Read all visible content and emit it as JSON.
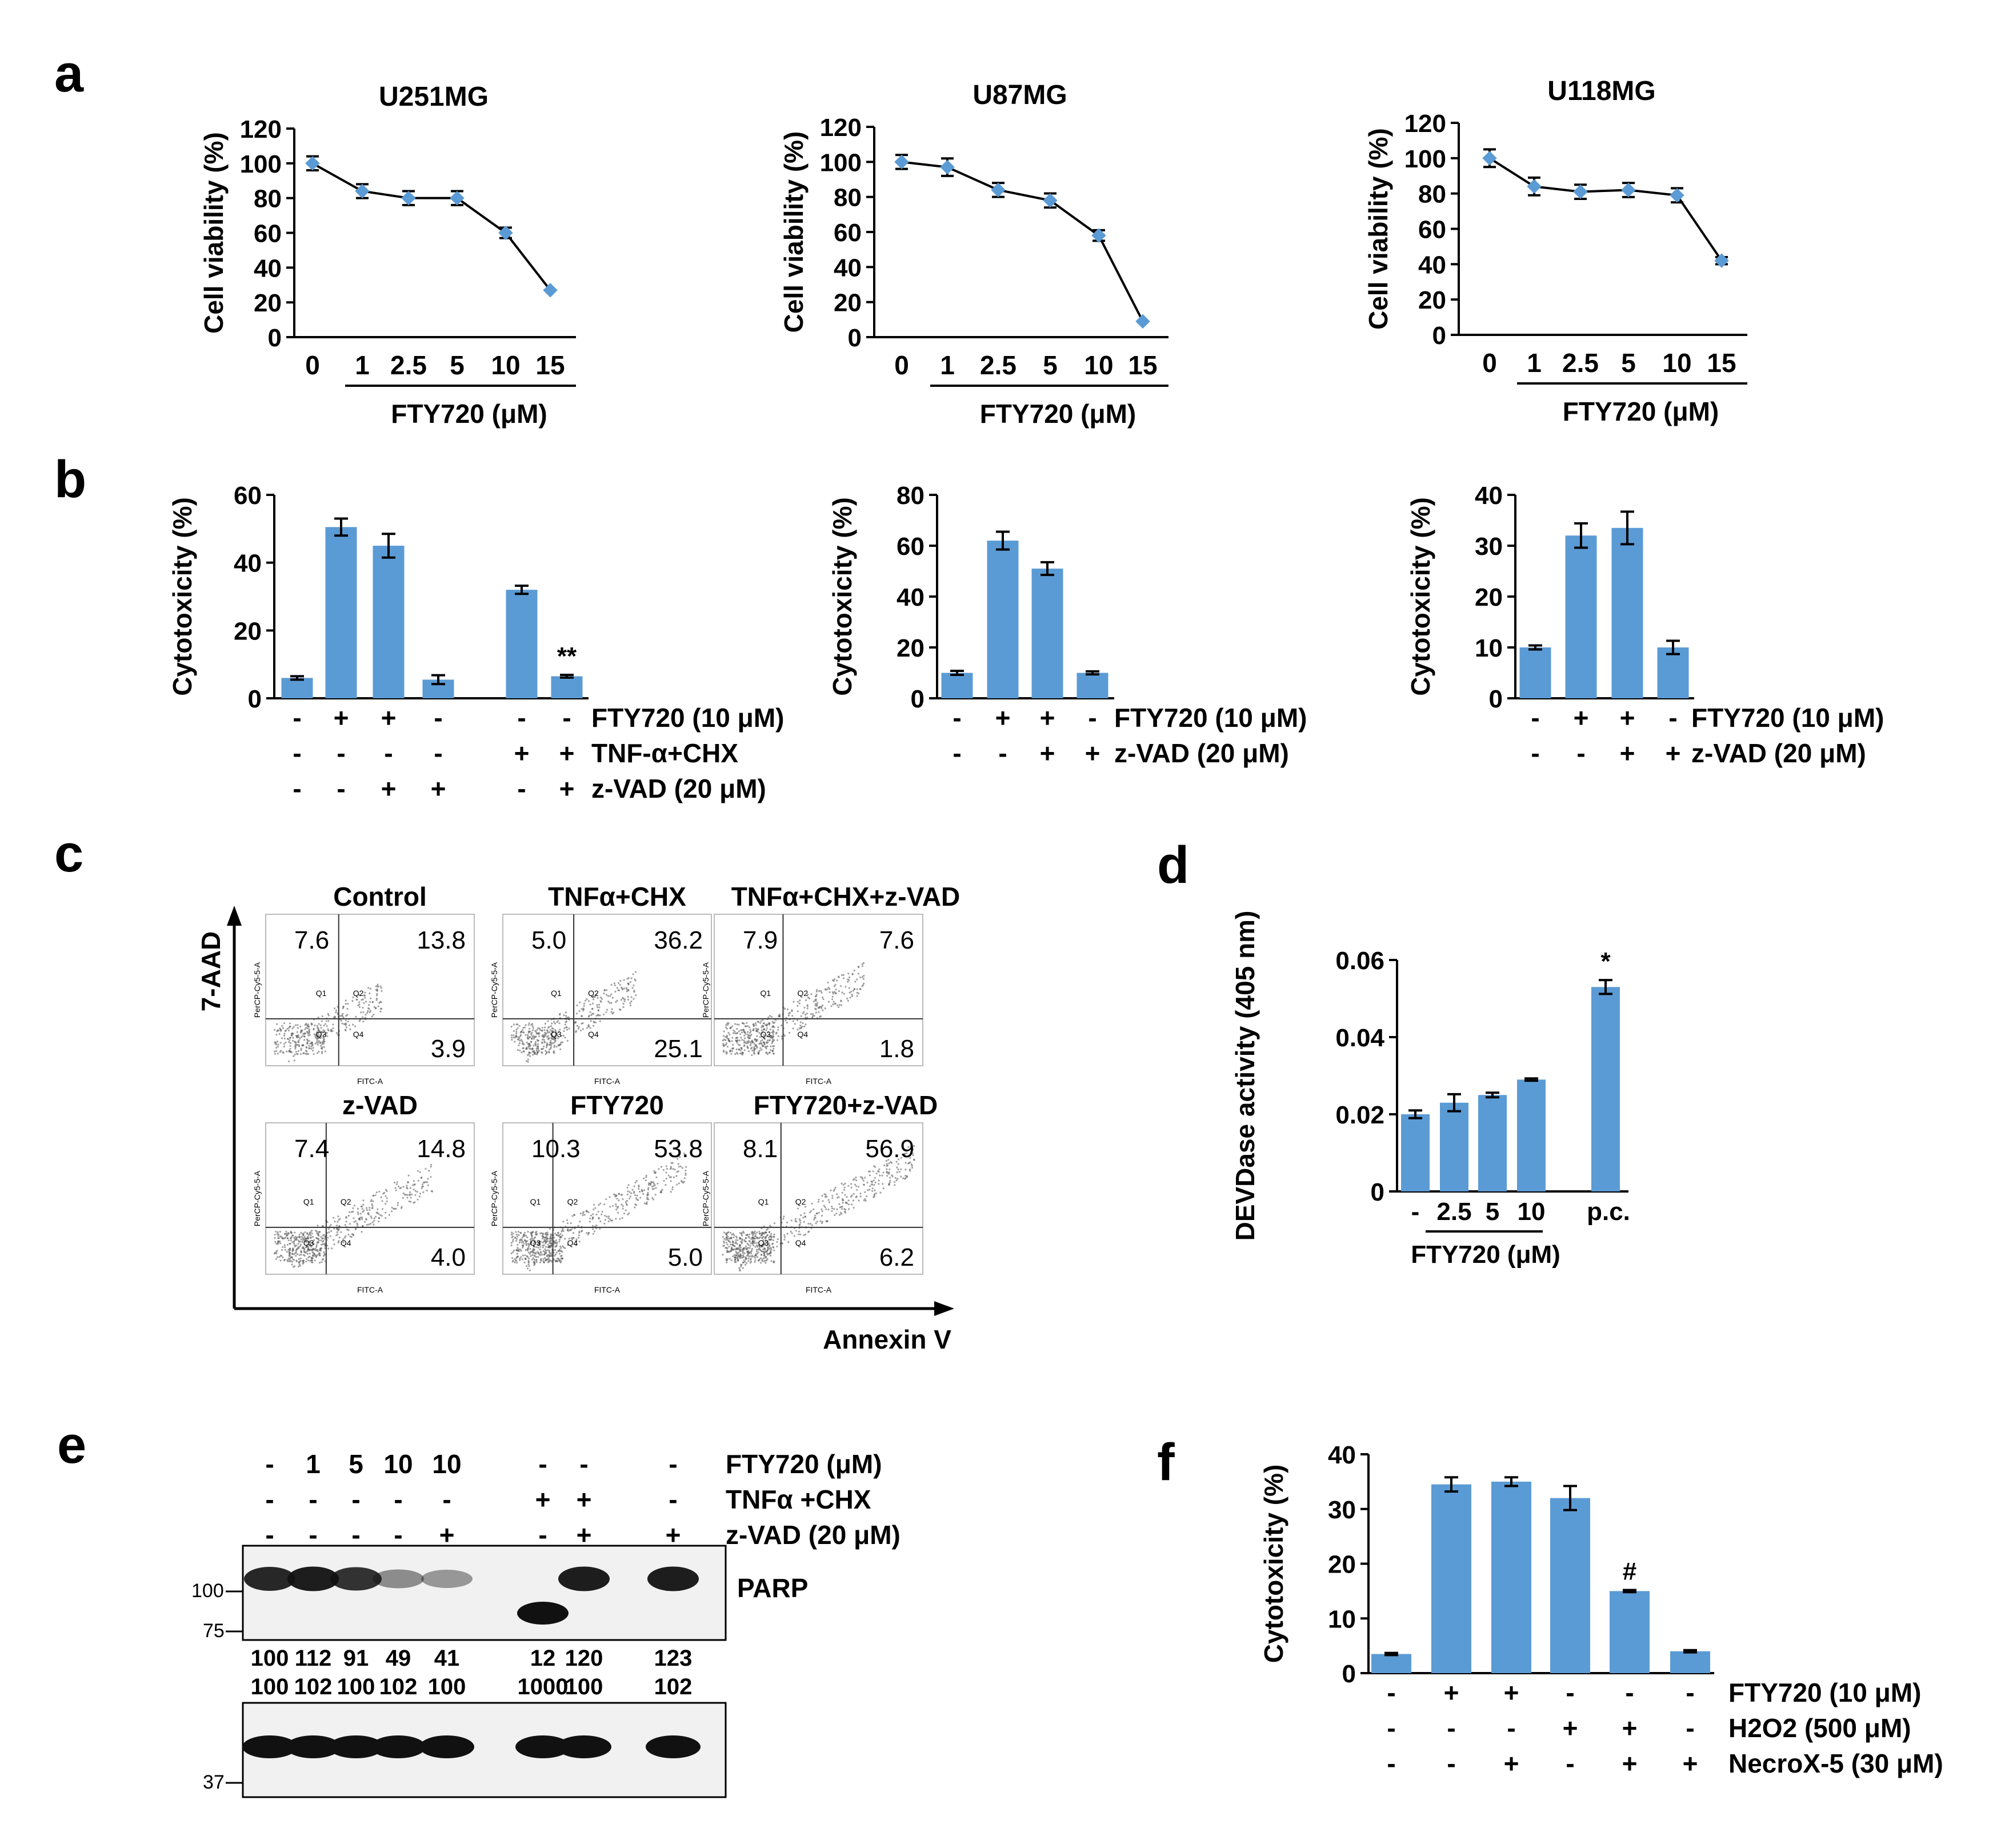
{
  "colors": {
    "bar": "#5b9bd5",
    "axis": "#000000",
    "blot_bg": "#f1f1f1",
    "band": "#111111",
    "facs_dot": "#555555"
  },
  "panel_letters": [
    "a",
    "b",
    "c",
    "d",
    "e",
    "f"
  ],
  "panel_a": {
    "ylabel": "Cell viability (%)",
    "yticks": [
      "0",
      "20",
      "40",
      "60",
      "80",
      "100",
      "120"
    ],
    "xticks": [
      "0",
      "1",
      "2.5",
      "5",
      "10",
      "15"
    ],
    "xlabel": "FTY720 (μM)"
  },
  "panel_b": {
    "ylabel": "Cytotoxicity (%)"
  },
  "panel_c": {
    "ylabel": "7-AAD",
    "xlabel": "Annexin V",
    "plot_ylabel": "PerCP-Cy5-5-A",
    "plot_xlabel": "FITC-A",
    "quadrant_labels": [
      "Q1",
      "Q2",
      "Q3",
      "Q4"
    ],
    "plots": [
      {
        "title": "Control",
        "q1": "7.6",
        "q2": "13.8",
        "q4": "3.9"
      },
      {
        "title": "TNFα+CHX",
        "q1": "5.0",
        "q2": "36.2",
        "q4": "25.1"
      },
      {
        "title": "TNFα+CHX+z-VAD",
        "q1": "7.9",
        "q2": "7.6",
        "q4": "1.8"
      },
      {
        "title": "z-VAD",
        "q1": "7.4",
        "q2": "14.8",
        "q4": "4.0"
      },
      {
        "title": "FTY720",
        "q1": "10.3",
        "q2": "53.8",
        "q4": "5.0"
      },
      {
        "title": "FTY720+z-VAD",
        "q1": "8.1",
        "q2": "56.9",
        "q4": "6.2"
      }
    ]
  },
  "panel_e": {
    "rows": [
      {
        "label": "FTY720 (μM)",
        "marks": [
          "-",
          "1",
          "5",
          "10",
          "10",
          "-",
          "-",
          "-"
        ]
      },
      {
        "label": "TNFα +CHX",
        "marks": [
          "-",
          "-",
          "-",
          "-",
          "-",
          "+",
          "+",
          "-"
        ]
      },
      {
        "label": "z-VAD (20 μM)",
        "marks": [
          "-",
          "-",
          "-",
          "-",
          "+",
          "-",
          "+",
          "+"
        ]
      }
    ],
    "protein": "PARP",
    "mw_markers": [
      "100",
      "75",
      "37"
    ],
    "quant_full": [
      "100",
      "112",
      "91",
      "49",
      "41",
      "12",
      "120",
      "123"
    ],
    "quant_cleaved": [
      "100",
      "102",
      "100",
      "102",
      "100",
      "1000",
      "100",
      "102"
    ]
  },
  "chart_data": [
    {
      "id": "a1",
      "type": "line",
      "title": "U251MG",
      "x": [
        "0",
        "1",
        "2.5",
        "5",
        "10",
        "15"
      ],
      "values": [
        100,
        84,
        80,
        80,
        60,
        27
      ],
      "errors": [
        4,
        4,
        4,
        4,
        3,
        0
      ],
      "xlabel": "FTY720 (μM)",
      "ylabel": "Cell viability (%)",
      "ylim": [
        0,
        120
      ]
    },
    {
      "id": "a2",
      "type": "line",
      "title": "U87MG",
      "x": [
        "0",
        "1",
        "2.5",
        "5",
        "10",
        "15"
      ],
      "values": [
        100,
        97,
        84,
        78,
        58,
        9
      ],
      "errors": [
        4,
        5,
        4,
        4,
        3,
        0
      ],
      "xlabel": "FTY720 (μM)",
      "ylabel": "Cell viability (%)",
      "ylim": [
        0,
        120
      ]
    },
    {
      "id": "a3",
      "type": "line",
      "title": "U118MG",
      "x": [
        "0",
        "1",
        "2.5",
        "5",
        "10",
        "15"
      ],
      "values": [
        100,
        84,
        81,
        82,
        79,
        42
      ],
      "errors": [
        5,
        5,
        4,
        4,
        4,
        2
      ],
      "xlabel": "FTY720 (μM)",
      "ylabel": "Cell viability (%)",
      "ylim": [
        0,
        120
      ]
    },
    {
      "id": "b1",
      "type": "bar",
      "ylabel": "Cytotoxicity (%)",
      "ylim": [
        0,
        60
      ],
      "yticks": [
        "0",
        "20",
        "40",
        "60"
      ],
      "values": [
        6,
        50.5,
        45,
        5.5,
        32,
        6.5
      ],
      "errors": [
        0.5,
        2.5,
        3.5,
        1.3,
        1.2,
        0.4
      ],
      "annotations": [
        "",
        "",
        "",
        "",
        "",
        "**"
      ],
      "rows": [
        {
          "label": "FTY720 (10 μM)",
          "marks": [
            "-",
            "+",
            "+",
            "-",
            "-",
            "-"
          ]
        },
        {
          "label": "TNF-α+CHX",
          "marks": [
            "-",
            "-",
            "-",
            "-",
            "+",
            "+"
          ]
        },
        {
          "label": "z-VAD (20 μM)",
          "marks": [
            "-",
            "-",
            "+",
            "+",
            "-",
            "+"
          ]
        }
      ]
    },
    {
      "id": "b2",
      "type": "bar",
      "ylabel": "Cytotoxicity (%)",
      "ylim": [
        0,
        80
      ],
      "yticks": [
        "0",
        "20",
        "40",
        "60",
        "80"
      ],
      "values": [
        10,
        62,
        51,
        10
      ],
      "errors": [
        0.8,
        3.5,
        2.5,
        0.6
      ],
      "annotations": [
        "",
        "",
        "",
        ""
      ],
      "rows": [
        {
          "label": "FTY720 (10 μM)",
          "marks": [
            "-",
            "+",
            "+",
            "-"
          ]
        },
        {
          "label": "z-VAD (20 μM)",
          "marks": [
            "-",
            "-",
            "+",
            "+"
          ]
        }
      ]
    },
    {
      "id": "b3",
      "type": "bar",
      "ylabel": "Cytotoxicity (%)",
      "ylim": [
        0,
        40
      ],
      "yticks": [
        "0",
        "10",
        "20",
        "30",
        "40"
      ],
      "values": [
        10,
        32,
        33.5,
        10
      ],
      "errors": [
        0.4,
        2.4,
        3.2,
        1.3
      ],
      "annotations": [
        "",
        "",
        "",
        ""
      ],
      "rows": [
        {
          "label": "FTY720 (10 μM)",
          "marks": [
            "-",
            "+",
            "+",
            "-"
          ]
        },
        {
          "label": "z-VAD (20 μM)",
          "marks": [
            "-",
            "-",
            "+",
            "+"
          ]
        }
      ]
    },
    {
      "id": "d",
      "type": "bar",
      "ylabel": "DEVDase activity (405 nm)",
      "ylim": [
        0,
        0.06
      ],
      "yticks": [
        "0",
        "0.02",
        "0.04",
        "0.06"
      ],
      "categories": [
        "-",
        "2.5",
        "5",
        "10",
        "p.c."
      ],
      "values": [
        0.02,
        0.023,
        0.025,
        0.029,
        0.053
      ],
      "errors": [
        0.001,
        0.0022,
        0.0006,
        0.0003,
        0.0018
      ],
      "annotations": [
        "",
        "",
        "",
        "",
        "*"
      ],
      "xlabel": "FTY720 (μM)"
    },
    {
      "id": "f",
      "type": "bar",
      "ylabel": "Cytotoxicity (%)",
      "ylim": [
        0,
        40
      ],
      "yticks": [
        "0",
        "10",
        "20",
        "30",
        "40"
      ],
      "values": [
        3.5,
        34.5,
        35,
        32,
        15,
        4
      ],
      "errors": [
        0.2,
        1.3,
        0.8,
        2.2,
        0.2,
        0.2
      ],
      "annotations": [
        "",
        "",
        "",
        "",
        "#",
        ""
      ],
      "rows": [
        {
          "label": "FTY720 (10 μM)",
          "marks": [
            "-",
            "+",
            "+",
            "-",
            "-",
            "-"
          ]
        },
        {
          "label": "H2O2 (500 μM)",
          "marks": [
            "-",
            "-",
            "-",
            "+",
            "+",
            "-"
          ]
        },
        {
          "label": "NecroX-5 (30 μM)",
          "marks": [
            "-",
            "-",
            "+",
            "-",
            "+",
            "+"
          ]
        }
      ]
    }
  ]
}
